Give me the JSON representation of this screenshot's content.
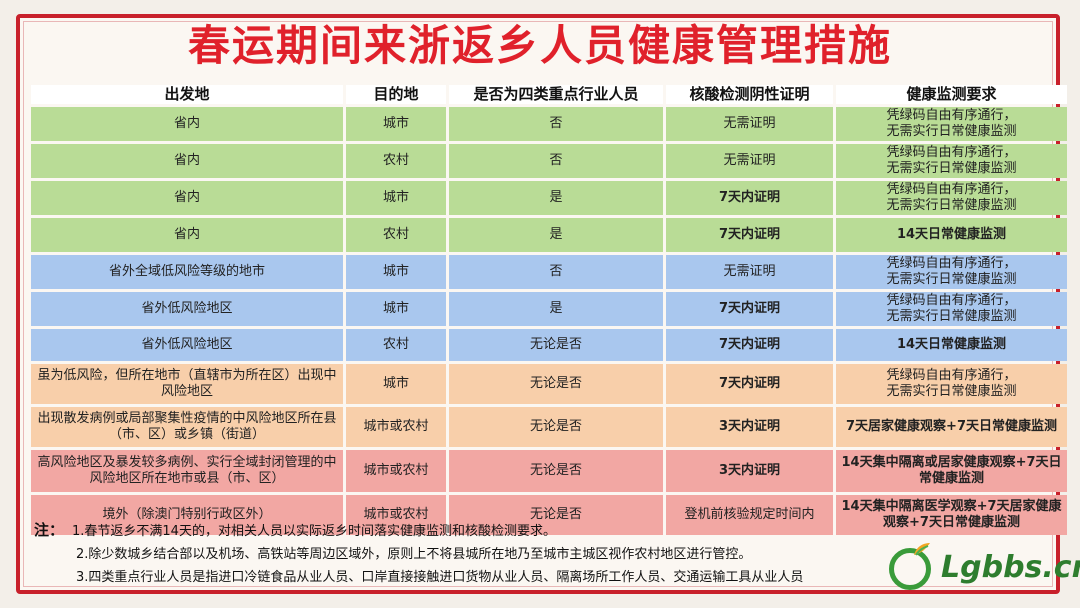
{
  "title": "春运期间来浙返乡人员健康管理措施",
  "headers": [
    "出发地",
    "目的地",
    "是否为四类重点行业人员",
    "核酸检测阴性证明",
    "健康监测要求"
  ],
  "rows": [
    {
      "color": "g",
      "origin": "省内",
      "dest": "城市",
      "key": "否",
      "test": "无需证明",
      "test_bold": false,
      "monitor": [
        "凭绿码自由有序通行，",
        "无需实行日常健康监测"
      ],
      "monitor_bold": false
    },
    {
      "color": "g",
      "origin": "省内",
      "dest": "农村",
      "key": "否",
      "test": "无需证明",
      "test_bold": false,
      "monitor": [
        "凭绿码自由有序通行，",
        "无需实行日常健康监测"
      ],
      "monitor_bold": false
    },
    {
      "color": "g",
      "origin": "省内",
      "dest": "城市",
      "key": "是",
      "test": "7天内证明",
      "test_bold": true,
      "monitor": [
        "凭绿码自由有序通行，",
        "无需实行日常健康监测"
      ],
      "monitor_bold": false
    },
    {
      "color": "g",
      "origin": "省内",
      "dest": "农村",
      "key": "是",
      "test": "7天内证明",
      "test_bold": true,
      "monitor": [
        "14天日常健康监测"
      ],
      "monitor_bold": true
    },
    {
      "color": "b",
      "origin": "省外全域低风险等级的地市",
      "dest": "城市",
      "key": "否",
      "test": "无需证明",
      "test_bold": false,
      "monitor": [
        "凭绿码自由有序通行，",
        "无需实行日常健康监测"
      ],
      "monitor_bold": false
    },
    {
      "color": "b",
      "origin": "省外低风险地区",
      "dest": "城市",
      "key": "是",
      "test": "7天内证明",
      "test_bold": true,
      "monitor": [
        "凭绿码自由有序通行，",
        "无需实行日常健康监测"
      ],
      "monitor_bold": false
    },
    {
      "color": "b",
      "origin": "省外低风险地区",
      "dest": "农村",
      "key": "无论是否",
      "test": "7天内证明",
      "test_bold": true,
      "monitor": [
        "14天日常健康监测"
      ],
      "monitor_bold": true
    },
    {
      "color": "o",
      "origin": "虽为低风险，但所在地市（直辖市为所在区）出现中风险地区",
      "dest": "城市",
      "key": "无论是否",
      "test": "7天内证明",
      "test_bold": true,
      "monitor": [
        "凭绿码自由有序通行，",
        "无需实行日常健康监测"
      ],
      "monitor_bold": false
    },
    {
      "color": "o",
      "origin": "出现散发病例或局部聚集性疫情的中风险地区所在县（市、区）或乡镇（街道）",
      "dest": "城市或农村",
      "key": "无论是否",
      "test": "3天内证明",
      "test_bold": true,
      "monitor": [
        "7天居家健康观察+7天日常健康监测"
      ],
      "monitor_bold": true
    },
    {
      "color": "r",
      "origin": "高风险地区及暴发较多病例、实行全域封闭管理的中风险地区所在地市或县（市、区）",
      "dest": "城市或农村",
      "key": "无论是否",
      "test": "3天内证明",
      "test_bold": true,
      "monitor": [
        "14天集中隔离或居家健康观察+7天日常健康监测"
      ],
      "monitor_bold": true
    },
    {
      "color": "r",
      "origin": "境外（除澳门特别行政区外）",
      "dest": "城市或农村",
      "key": "无论是否",
      "test": "登机前核验规定时间内",
      "test_bold": false,
      "monitor": [
        "14天集中隔离医学观察+7天居家健康观察+7天日常健康监测"
      ],
      "monitor_bold": true
    }
  ],
  "notes": {
    "label": "注：",
    "items": [
      "1.春节返乡不满14天的，对相关人员以实际返乡时间落实健康监测和核酸检测要求。",
      "2.除少数城乡结合部以及机场、高铁站等周边区域外，原则上不将县城所在地乃至城市主城区视作农村地区进行管控。",
      "3.四类重点行业人员是指进口冷链食品从业人员、口岸直接接触进口货物从业人员、隔离场所工作人员、交通运输工具从业人员"
    ]
  },
  "watermark": "Lgbbs.cn"
}
